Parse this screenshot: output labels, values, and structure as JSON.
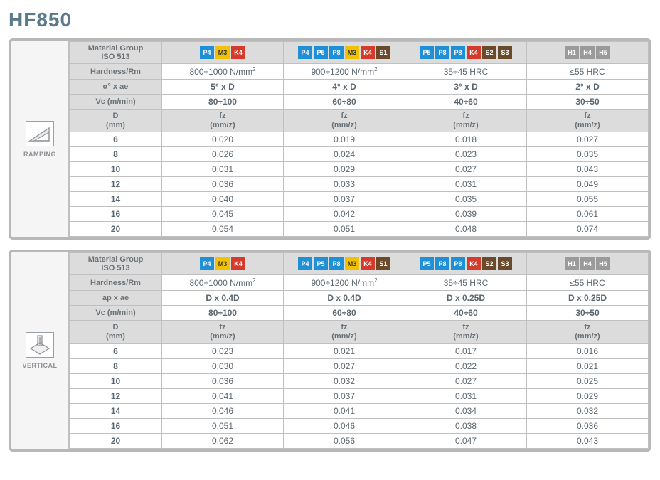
{
  "title": "HF850",
  "badge_colors": {
    "P": "#1f8fd6",
    "M": "#f2c200",
    "K": "#d63a2a",
    "S": "#6a4a2a",
    "H": "#9a9a9a"
  },
  "columns": {
    "material_groups": [
      [
        "P4",
        "M3",
        "K4"
      ],
      [
        "P4",
        "P5",
        "P8",
        "M3",
        "K4",
        "S1"
      ],
      [
        "P5",
        "P8",
        "P8",
        "K4",
        "S2",
        "S3"
      ],
      [
        "H1",
        "H4",
        "H5"
      ]
    ],
    "hardness": [
      "800÷1000 N/mm²",
      "900÷1200 N/mm²",
      "35÷45 HRC",
      "≤55 HRC"
    ]
  },
  "ramping": {
    "side_label": "RAMPING",
    "row_labels": {
      "mat": "Material Group\nISO 513",
      "hardness": "Hardness/Rm",
      "axae": "α° x ae",
      "vc": "Vc (m/min)",
      "dhead": "D\n(mm)",
      "fzhead": "fz\n(mm/z)"
    },
    "axae": [
      "5° x D",
      "4° x D",
      "3° x D",
      "2° x D"
    ],
    "vc": [
      "80÷100",
      "60÷80",
      "40÷60",
      "30÷50"
    ],
    "diameters": [
      "6",
      "8",
      "10",
      "12",
      "14",
      "16",
      "20"
    ],
    "fz": [
      [
        "0.020",
        "0.019",
        "0.018",
        "0.027"
      ],
      [
        "0.026",
        "0.024",
        "0.023",
        "0.035"
      ],
      [
        "0.031",
        "0.029",
        "0.027",
        "0.043"
      ],
      [
        "0.036",
        "0.033",
        "0.031",
        "0.049"
      ],
      [
        "0.040",
        "0.037",
        "0.035",
        "0.055"
      ],
      [
        "0.045",
        "0.042",
        "0.039",
        "0.061"
      ],
      [
        "0.054",
        "0.051",
        "0.048",
        "0.074"
      ]
    ]
  },
  "vertical": {
    "side_label": "VERTICAL",
    "row_labels": {
      "mat": "Material Group\nISO 513",
      "hardness": "Hardness/Rm",
      "apae": "ap x ae",
      "vc": "Vc (m/min)",
      "dhead": "D\n(mm)",
      "fzhead": "fz\n(mm/z)"
    },
    "apae": [
      "D x 0.4D",
      "D x 0.4D",
      "D x 0.25D",
      "D x 0.25D"
    ],
    "vc": [
      "80÷100",
      "60÷80",
      "40÷60",
      "30÷50"
    ],
    "diameters": [
      "6",
      "8",
      "10",
      "12",
      "14",
      "16",
      "20"
    ],
    "fz": [
      [
        "0.023",
        "0.021",
        "0.017",
        "0.016"
      ],
      [
        "0.030",
        "0.027",
        "0.022",
        "0.021"
      ],
      [
        "0.036",
        "0.032",
        "0.027",
        "0.025"
      ],
      [
        "0.041",
        "0.037",
        "0.031",
        "0.029"
      ],
      [
        "0.046",
        "0.041",
        "0.034",
        "0.032"
      ],
      [
        "0.051",
        "0.046",
        "0.038",
        "0.036"
      ],
      [
        "0.062",
        "0.056",
        "0.047",
        "0.043"
      ]
    ]
  }
}
